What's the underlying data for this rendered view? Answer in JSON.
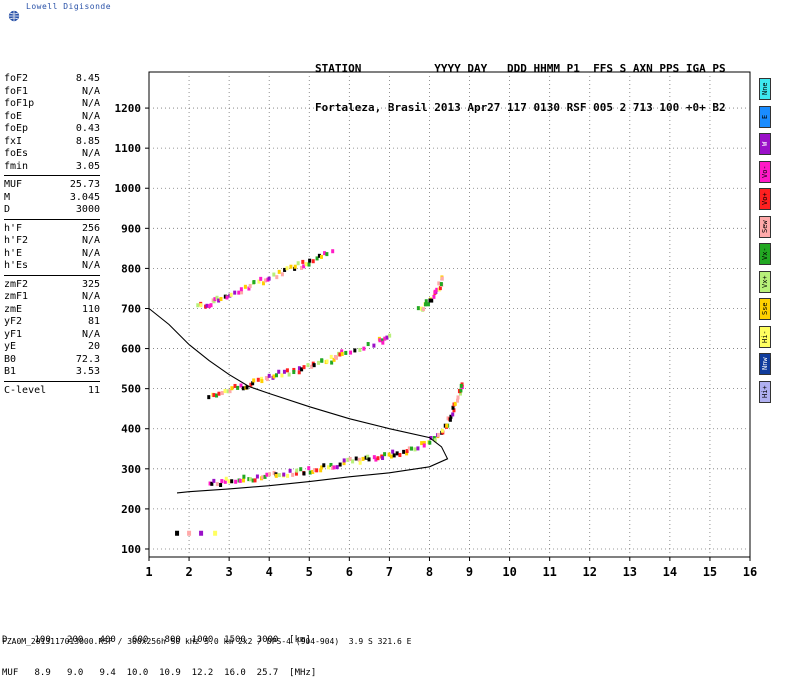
{
  "logo_text": "Lowell Digisonde",
  "header": {
    "line1": "STATION           YYYY DAY   DDD HHMM P1  FFS S AXN PPS IGA PS",
    "line2": "Fortaleza, Brasil 2013 Apr27 117 0130 RSF 005 2 713 100 +0+ B2"
  },
  "params": [
    {
      "k": "foF2",
      "v": "8.45"
    },
    {
      "k": "foF1",
      "v": "N/A"
    },
    {
      "k": "foF1p",
      "v": "N/A"
    },
    {
      "k": "foE",
      "v": "N/A"
    },
    {
      "k": "foEp",
      "v": "0.43"
    },
    {
      "k": "fxI",
      "v": "8.85"
    },
    {
      "k": "foEs",
      "v": "N/A"
    },
    {
      "k": "fmin",
      "v": "3.05"
    },
    {
      "k": "MUF",
      "v": "25.73"
    },
    {
      "k": "M",
      "v": "3.045"
    },
    {
      "k": "D",
      "v": "3000"
    },
    {
      "k": "h'F",
      "v": "256"
    },
    {
      "k": "h'F2",
      "v": "N/A"
    },
    {
      "k": "h'E",
      "v": "N/A"
    },
    {
      "k": "h'Es",
      "v": "N/A"
    },
    {
      "k": "zmF2",
      "v": "325"
    },
    {
      "k": "zmF1",
      "v": "N/A"
    },
    {
      "k": "zmE",
      "v": "110"
    },
    {
      "k": "yF2",
      "v": "81"
    },
    {
      "k": "yF1",
      "v": "N/A"
    },
    {
      "k": "yE",
      "v": "20"
    },
    {
      "k": "B0",
      "v": "72.3"
    },
    {
      "k": "B1",
      "v": "3.53"
    },
    {
      "k": "C-level",
      "v": "11"
    }
  ],
  "legend": [
    {
      "label": "Nne",
      "color": "#3ee8f0"
    },
    {
      "label": "E",
      "color": "#1a8cff"
    },
    {
      "label": "W",
      "color": "#9a10c8"
    },
    {
      "label": "Vo-",
      "color": "#ff1ac6"
    },
    {
      "label": "Vo+",
      "color": "#ff2020"
    },
    {
      "label": "Sew",
      "color": "#ffaaaa"
    },
    {
      "label": "Vx-",
      "color": "#22a822"
    },
    {
      "label": "Vx+",
      "color": "#b8f07a"
    },
    {
      "label": "Sse",
      "color": "#ffd000"
    },
    {
      "label": "Hi-",
      "color": "#ffff60"
    },
    {
      "label": "Nnw",
      "color": "#103c9c"
    },
    {
      "label": "Hi+",
      "color": "#b0b0f0"
    }
  ],
  "bottom": {
    "d_line": "D     100   200   400   600   800  1000  1500  3000  [km]",
    "muf_line": "MUF   8.9   9.0   9.4  10.0  10.9  12.2  16.0  25.7  [MHz]",
    "footer": "FZA0M_2013117013000.RSF / 300x256h 50 kHz 5.0 km 2x2 / DPS-4 (904-904)  3.9 S 321.6 E"
  },
  "chart_data": {
    "type": "scatter",
    "xlim": [
      1,
      16
    ],
    "ylim": [
      80,
      1290
    ],
    "xticks": [
      1,
      2,
      3,
      4,
      5,
      6,
      7,
      8,
      9,
      10,
      11,
      12,
      13,
      14,
      15,
      16
    ],
    "yticks": [
      100,
      200,
      300,
      400,
      500,
      600,
      700,
      800,
      900,
      1000,
      1100,
      1200
    ],
    "grid": true,
    "ordinary_trace_lower": [
      {
        "x": 2.5,
        "y": 255
      },
      {
        "x": 3.0,
        "y": 262
      },
      {
        "x": 3.5,
        "y": 268
      },
      {
        "x": 4.0,
        "y": 275
      },
      {
        "x": 4.5,
        "y": 282
      },
      {
        "x": 5.0,
        "y": 290
      },
      {
        "x": 5.5,
        "y": 300
      },
      {
        "x": 6.0,
        "y": 310
      },
      {
        "x": 6.5,
        "y": 318
      },
      {
        "x": 7.0,
        "y": 328
      },
      {
        "x": 7.5,
        "y": 340
      },
      {
        "x": 8.0,
        "y": 360
      },
      {
        "x": 8.3,
        "y": 385
      },
      {
        "x": 8.5,
        "y": 420
      },
      {
        "x": 8.7,
        "y": 470
      },
      {
        "x": 8.8,
        "y": 510
      }
    ],
    "multihop_trace": [
      {
        "x": 2.5,
        "y": 475
      },
      {
        "x": 3.0,
        "y": 490
      },
      {
        "x": 3.5,
        "y": 505
      },
      {
        "x": 4.0,
        "y": 520
      },
      {
        "x": 4.5,
        "y": 535
      },
      {
        "x": 5.0,
        "y": 550
      },
      {
        "x": 5.5,
        "y": 565
      },
      {
        "x": 5.8,
        "y": 580
      },
      {
        "x": 6.7,
        "y": 610
      },
      {
        "x": 7.0,
        "y": 620
      }
    ],
    "triple_hop_trace": [
      {
        "x": 2.2,
        "y": 695
      },
      {
        "x": 2.6,
        "y": 710
      },
      {
        "x": 3.0,
        "y": 728
      },
      {
        "x": 3.5,
        "y": 750
      },
      {
        "x": 4.0,
        "y": 770
      },
      {
        "x": 4.6,
        "y": 795
      },
      {
        "x": 5.0,
        "y": 810
      },
      {
        "x": 5.6,
        "y": 840
      }
    ],
    "high_trace": [
      {
        "x": 7.7,
        "y": 690
      },
      {
        "x": 8.0,
        "y": 710
      },
      {
        "x": 8.2,
        "y": 740
      },
      {
        "x": 8.35,
        "y": 775
      }
    ],
    "low_echo": [
      {
        "x": 1.7,
        "y": 138
      },
      {
        "x": 2.0,
        "y": 138
      },
      {
        "x": 2.3,
        "y": 138
      },
      {
        "x": 2.65,
        "y": 138
      }
    ],
    "profile_line": [
      {
        "x": 1.0,
        "y": 700
      },
      {
        "x": 1.5,
        "y": 660
      },
      {
        "x": 2.0,
        "y": 610
      },
      {
        "x": 2.5,
        "y": 570
      },
      {
        "x": 3.0,
        "y": 535
      },
      {
        "x": 3.5,
        "y": 505
      },
      {
        "x": 4.0,
        "y": 488
      },
      {
        "x": 5.0,
        "y": 455
      },
      {
        "x": 6.0,
        "y": 425
      },
      {
        "x": 7.0,
        "y": 400
      },
      {
        "x": 8.0,
        "y": 378
      },
      {
        "x": 8.3,
        "y": 355
      },
      {
        "x": 8.45,
        "y": 325
      },
      {
        "x": 8.0,
        "y": 305
      },
      {
        "x": 7.0,
        "y": 290
      },
      {
        "x": 6.0,
        "y": 280
      },
      {
        "x": 5.0,
        "y": 268
      },
      {
        "x": 4.0,
        "y": 258
      },
      {
        "x": 3.0,
        "y": 250
      },
      {
        "x": 2.0,
        "y": 243
      },
      {
        "x": 1.7,
        "y": 240
      }
    ]
  }
}
